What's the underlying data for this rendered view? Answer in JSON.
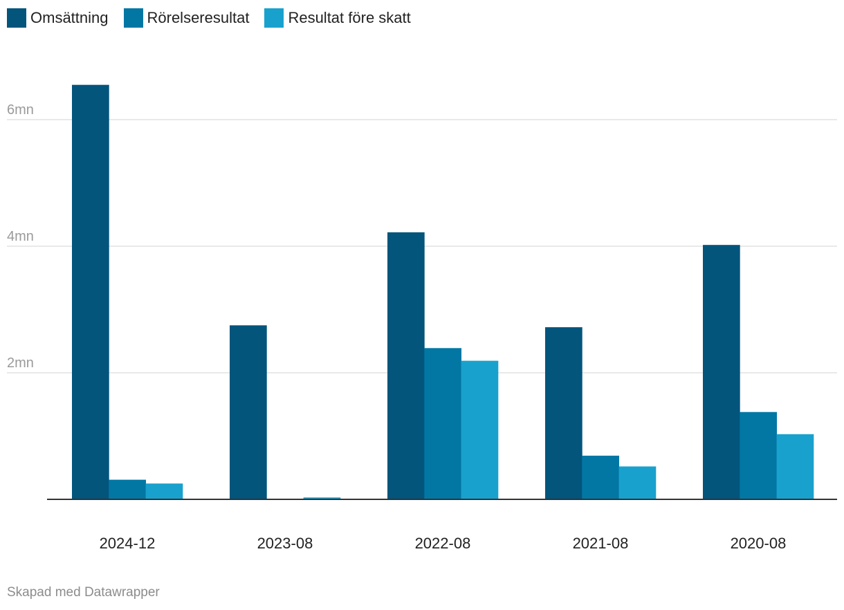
{
  "chart_data": {
    "type": "bar",
    "categories": [
      "2024-12",
      "2023-08",
      "2022-08",
      "2021-08",
      "2020-08"
    ],
    "series": [
      {
        "name": "Omsättning",
        "color": "#03557c",
        "values": [
          6.55,
          2.75,
          4.22,
          2.72,
          4.02
        ]
      },
      {
        "name": "Rörelseresultat",
        "color": "#0277a4",
        "values": [
          0.31,
          0.0,
          2.39,
          0.69,
          1.38
        ]
      },
      {
        "name": "Resultat före skatt",
        "color": "#19a1cd",
        "values": [
          0.25,
          0.03,
          2.19,
          0.52,
          1.03
        ]
      }
    ],
    "yticks": [
      {
        "value": 2,
        "label": "2mn"
      },
      {
        "value": 4,
        "label": "4mn"
      },
      {
        "value": 6,
        "label": "6mn"
      }
    ],
    "ylim": [
      0,
      6.6
    ],
    "ylabel": "",
    "xlabel": "",
    "grid": true,
    "legend_position": "top-left"
  },
  "credit": "Skapad med Datawrapper"
}
